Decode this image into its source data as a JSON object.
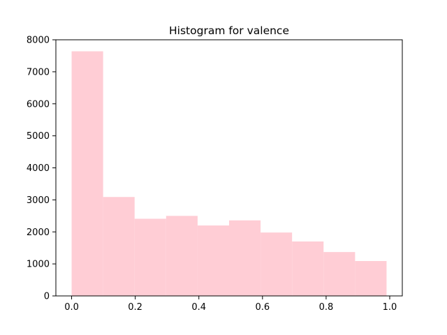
{
  "chart_data": {
    "type": "bar",
    "title": "Histogram for valence",
    "xlabel": "",
    "ylabel": "",
    "bin_edges": [
      0.0,
      0.099,
      0.198,
      0.297,
      0.396,
      0.495,
      0.594,
      0.693,
      0.792,
      0.891,
      0.99
    ],
    "values": [
      7640,
      3090,
      2410,
      2500,
      2200,
      2360,
      1980,
      1700,
      1370,
      1090
    ],
    "xlim": [
      -0.0495,
      1.0395
    ],
    "ylim": [
      0,
      8000
    ],
    "xticks": [
      0.0,
      0.2,
      0.4,
      0.6,
      0.8,
      1.0
    ],
    "xtick_labels": [
      "0.0",
      "0.2",
      "0.4",
      "0.6",
      "0.8",
      "1.0"
    ],
    "yticks": [
      0,
      1000,
      2000,
      3000,
      4000,
      5000,
      6000,
      7000,
      8000
    ],
    "ytick_labels": [
      "0",
      "1000",
      "2000",
      "3000",
      "4000",
      "5000",
      "6000",
      "7000",
      "8000"
    ],
    "bar_color": "#ffcdd5",
    "grid": false,
    "legend": "none"
  }
}
